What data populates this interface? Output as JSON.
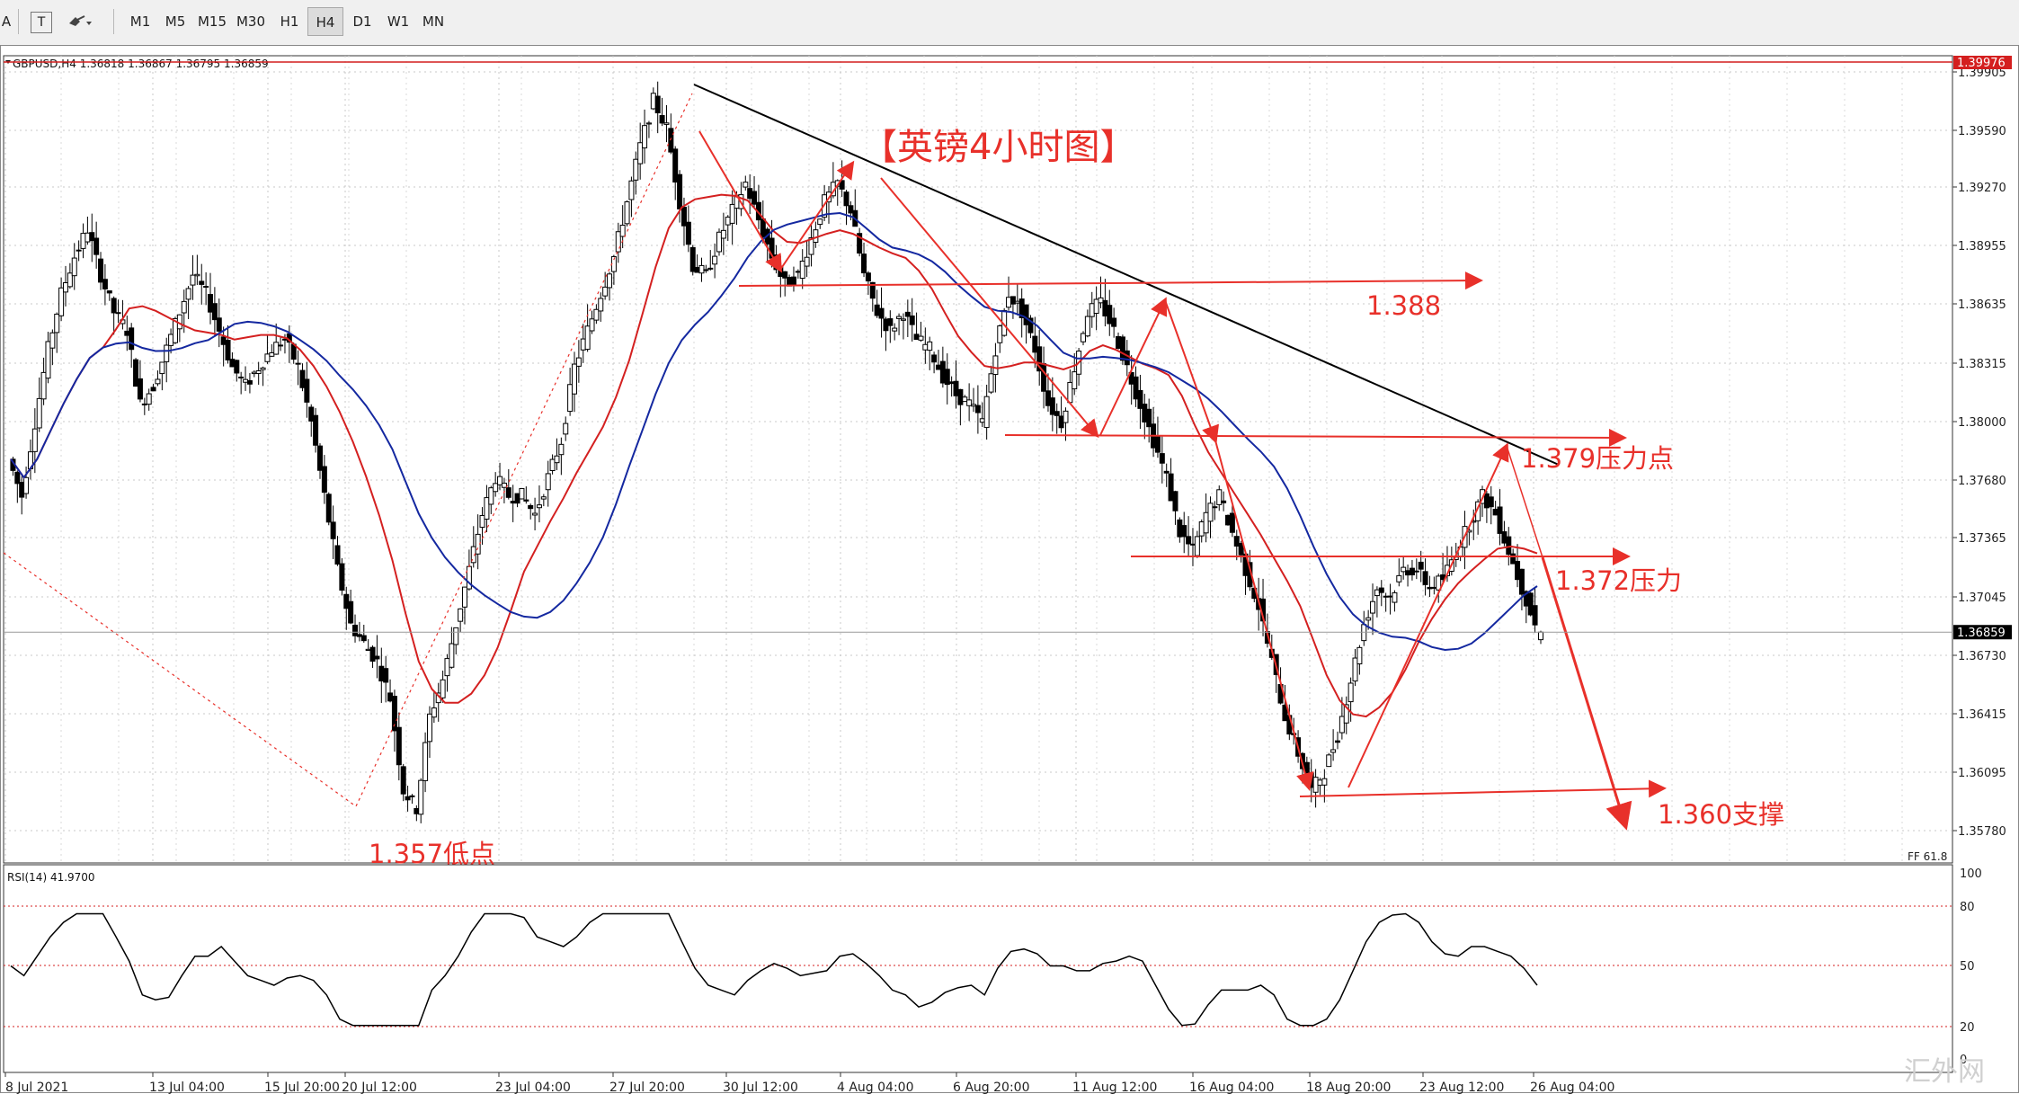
{
  "toolbar": {
    "left_letter": "A",
    "text_tool": "T",
    "timeframes": [
      "M1",
      "M5",
      "M15",
      "M30",
      "H1",
      "H4",
      "D1",
      "W1",
      "MN"
    ],
    "active_timeframe": "H4"
  },
  "chart": {
    "header": "GBPUSD,H4  1.36818 1.36867 1.36795 1.36859",
    "title_annotation": "【英镑4小时图】",
    "current_price": "1.36859",
    "top_price_label": "1.39976",
    "ff_label": "FF 61.8",
    "watermark": "汇外网"
  },
  "annotations": {
    "level_1388": "1.388",
    "level_1379": "1.379压力点",
    "level_1372": "1.372压力",
    "level_1360": "1.360支撑",
    "low_1357": "1.357低点"
  },
  "colors": {
    "bear_body": "#000000",
    "annotation": "#e8302a",
    "ma_red": "#d42020",
    "ma_blue": "#1428a0",
    "grid": "#c8c8c8"
  },
  "chart_data": {
    "type": "candlestick",
    "symbol": "GBPUSD",
    "timeframe": "H4",
    "ohlc_last": {
      "open": 1.36818,
      "high": 1.36867,
      "low": 1.36795,
      "close": 1.36859
    },
    "y_ticks": [
      "1.39905",
      "1.39590",
      "1.39270",
      "1.38955",
      "1.38635",
      "1.38315",
      "1.38000",
      "1.37680",
      "1.37365",
      "1.37045",
      "1.36730",
      "1.36415",
      "1.36095",
      "1.35780"
    ],
    "x_ticks": [
      "8 Jul 2021",
      "13 Jul 04:00",
      "15 Jul 20:00",
      "20 Jul 12:00",
      "23 Jul 04:00",
      "27 Jul 20:00",
      "30 Jul 12:00",
      "4 Aug 04:00",
      "6 Aug 20:00",
      "11 Aug 12:00",
      "16 Aug 04:00",
      "18 Aug 20:00",
      "23 Aug 12:00",
      "26 Aug 04:00"
    ],
    "close_path": [
      1.378,
      1.376,
      1.38,
      1.384,
      1.387,
      1.389,
      1.3905,
      1.388,
      1.386,
      1.385,
      1.381,
      1.382,
      1.384,
      1.386,
      1.388,
      1.387,
      1.385,
      1.383,
      1.382,
      1.383,
      1.384,
      1.3845,
      1.383,
      1.38,
      1.376,
      1.372,
      1.369,
      1.368,
      1.367,
      1.365,
      1.36,
      1.359,
      1.364,
      1.366,
      1.369,
      1.372,
      1.375,
      1.377,
      1.376,
      1.376,
      1.375,
      1.377,
      1.379,
      1.383,
      1.385,
      1.387,
      1.389,
      1.392,
      1.395,
      1.3975,
      1.396,
      1.392,
      1.3885,
      1.388,
      1.39,
      1.3915,
      1.393,
      1.391,
      1.389,
      1.3875,
      1.388,
      1.39,
      1.392,
      1.393,
      1.3915,
      1.388,
      1.386,
      1.385,
      1.386,
      1.3845,
      1.384,
      1.3825,
      1.3815,
      1.381,
      1.38,
      1.384,
      1.387,
      1.386,
      1.384,
      1.381,
      1.38,
      1.383,
      1.386,
      1.3865,
      1.385,
      1.383,
      1.381,
      1.379,
      1.377,
      1.374,
      1.373,
      1.375,
      1.376,
      1.374,
      1.372,
      1.37,
      1.367,
      1.364,
      1.362,
      1.36,
      1.361,
      1.363,
      1.366,
      1.369,
      1.371,
      1.3705,
      1.372,
      1.372,
      1.371,
      1.3715,
      1.373,
      1.3745,
      1.376,
      1.375,
      1.373,
      1.371,
      1.369
    ],
    "indicators": [
      {
        "name": "RSI(14)",
        "value": 41.97,
        "levels": [
          20,
          50,
          80
        ],
        "range": [
          0,
          100
        ]
      }
    ],
    "rsi_label": "RSI(14) 41.9700",
    "rsi_ticks": [
      "100",
      "80",
      "50",
      "20",
      "0"
    ]
  }
}
